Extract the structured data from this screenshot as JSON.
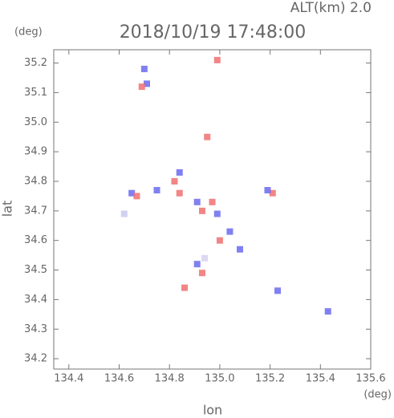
{
  "chart_data": {
    "type": "scatter",
    "title": "2018/10/19 17:48:00",
    "subtitle": "ALT(km) 2.0",
    "x_label": "lon",
    "y_label": "lat",
    "x_unit": "(deg)",
    "y_unit": "(deg)",
    "x": [
      134.7,
      134.71,
      134.69,
      134.99,
      134.95,
      134.62,
      134.65,
      134.67,
      134.75,
      134.84,
      134.84,
      134.82,
      134.91,
      134.97,
      134.93,
      134.99,
      135.04,
      135.08,
      135.0,
      134.94,
      134.91,
      134.93,
      134.86,
      135.21,
      135.19,
      135.43,
      135.23
    ],
    "y": [
      35.18,
      35.13,
      35.12,
      35.21,
      34.95,
      34.69,
      34.76,
      34.75,
      34.77,
      34.83,
      34.76,
      34.8,
      34.73,
      34.73,
      34.7,
      34.69,
      34.63,
      34.57,
      34.6,
      34.54,
      34.52,
      34.49,
      34.44,
      34.76,
      34.77,
      34.36,
      34.43
    ],
    "colors": [
      "#6a6af0",
      "#6a6af0",
      "#f07070",
      "#f07070",
      "#f07070",
      "#c8c8ee",
      "#6a6af0",
      "#f07070",
      "#6a6af0",
      "#6a6af0",
      "#f07070",
      "#f07070",
      "#6a6af0",
      "#f07070",
      "#f07070",
      "#6a6af0",
      "#6a6af0",
      "#6a6af0",
      "#f07070",
      "#d8d0ee",
      "#6a6af0",
      "#f07070",
      "#f07070",
      "#f07070",
      "#6a6af0",
      "#6a6af0",
      "#6a6af0"
    ],
    "xlim": [
      134.34,
      135.6
    ],
    "ylim": [
      34.165,
      35.245
    ],
    "xticks": [
      134.4,
      134.6,
      134.8,
      {
        "value": 135,
        "label": "135.0"
      },
      135.2,
      135.4,
      135.6
    ],
    "yticks": [
      34.2,
      34.3,
      34.4,
      34.5,
      34.6,
      34.7,
      34.8,
      34.9,
      {
        "value": 35,
        "label": "35.0"
      },
      35.1,
      35.2
    ]
  }
}
